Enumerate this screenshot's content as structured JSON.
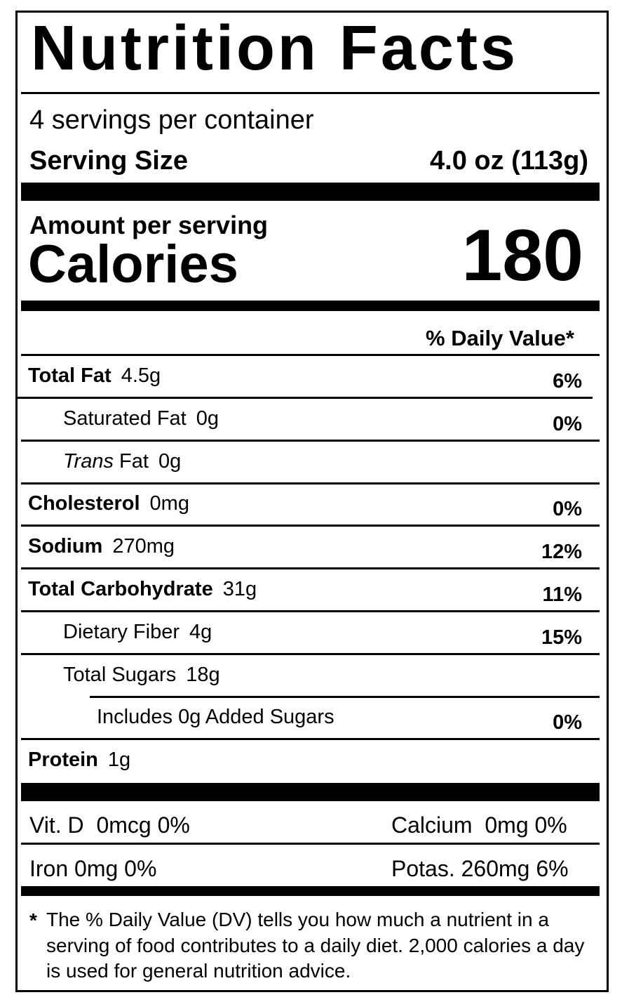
{
  "title": "Nutrition Facts",
  "servings": "4 servings per container",
  "serving_size": {
    "label": "Serving Size",
    "value": "4.0 oz (113g)"
  },
  "amount_per_serving": "Amount per serving",
  "calories": {
    "label": "Calories",
    "value": "180"
  },
  "daily_value_header": "% Daily Value*",
  "nutrients": [
    {
      "name": "Total Fat",
      "amount": "4.5g",
      "dv": "6%"
    },
    {
      "name": "Saturated Fat",
      "amount": "0g",
      "dv": "0%"
    },
    {
      "name_italic": "Trans",
      "name": "Fat",
      "amount": "0g"
    },
    {
      "name": "Cholesterol",
      "amount": "0mg",
      "dv": "0%"
    },
    {
      "name": "Sodium",
      "amount": "270mg",
      "dv": "12%"
    },
    {
      "name": "Total Carbohydrate",
      "amount": "31g",
      "dv": "11%"
    },
    {
      "name": "Dietary Fiber",
      "amount": "4g",
      "dv": "15%"
    },
    {
      "name": "Total Sugars",
      "amount": "18g"
    },
    {
      "name": "Includes 0g Added Sugars",
      "dv": "0%"
    },
    {
      "name": "Protein",
      "amount": "1g"
    }
  ],
  "vitamins": [
    {
      "name": "Vit. D",
      "amount": "0mcg",
      "dv": "0%"
    },
    {
      "name": "Calcium",
      "amount": "0mg",
      "dv": "0%"
    },
    {
      "name": "Iron",
      "amount": "0mg",
      "dv": "0%"
    },
    {
      "name": "Potas.",
      "amount": "260mg",
      "dv": "6%"
    }
  ],
  "footnote": {
    "mark": "*",
    "text": "The % Daily Value (DV) tells you how much a nutrient in a serving of food contributes to a daily diet. 2,000 calories a day is used for general nutrition advice."
  }
}
